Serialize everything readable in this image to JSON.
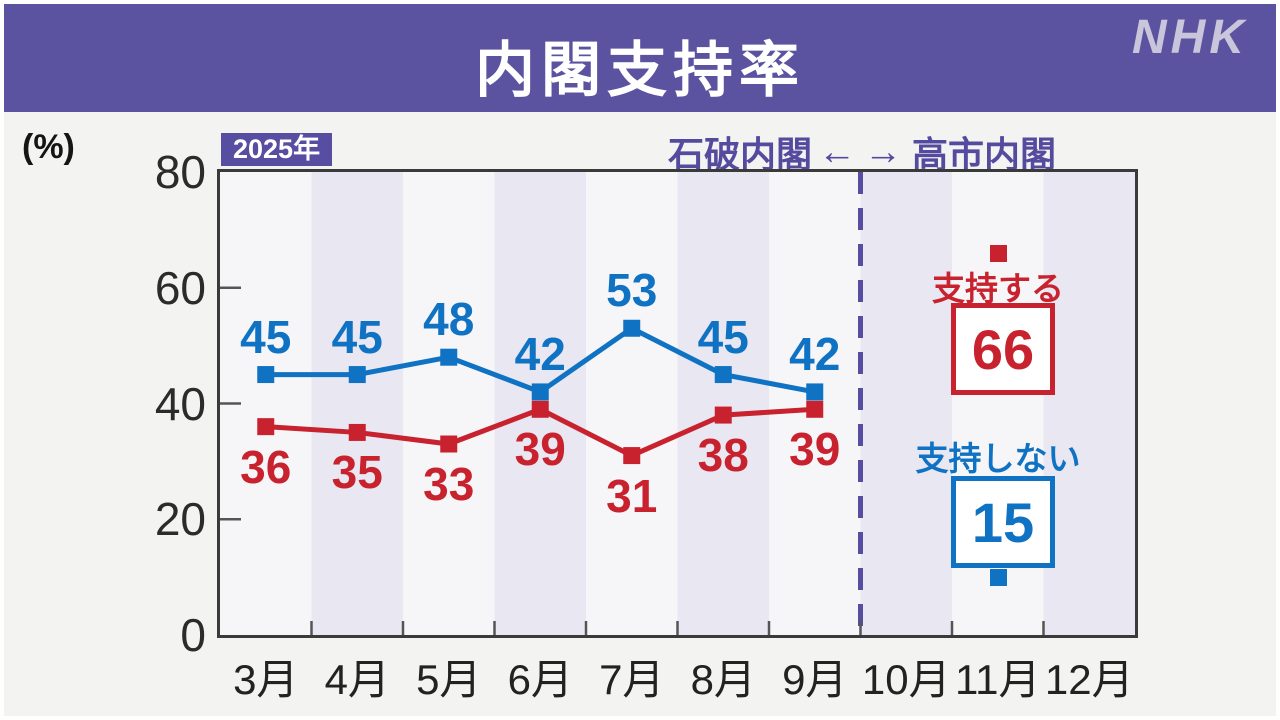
{
  "header": {
    "title": "内閣支持率",
    "logo": "NHK"
  },
  "axis_unit": "(%)",
  "year_badge": "2025年",
  "era_annotation": {
    "left_label": "石破内閣",
    "left_arrow": "←",
    "right_arrow": "→",
    "right_label": "高市内閣"
  },
  "chart_data": {
    "type": "line",
    "title": "内閣支持率",
    "ylabel": "(%)",
    "ylim": [
      0,
      80
    ],
    "y_ticks": [
      0,
      20,
      40,
      60,
      80
    ],
    "categories": [
      "3月",
      "4月",
      "5月",
      "6月",
      "7月",
      "8月",
      "9月",
      "10月",
      "11月",
      "12月"
    ],
    "series": [
      {
        "name": "支持しない",
        "color": "#0F72C2",
        "label_position": "above",
        "values": [
          45,
          45,
          48,
          42,
          53,
          45,
          42,
          null,
          15,
          null
        ]
      },
      {
        "name": "支持する",
        "color": "#C9222F",
        "label_position": "below",
        "values": [
          36,
          35,
          33,
          39,
          31,
          38,
          39,
          null,
          66,
          null
        ]
      }
    ],
    "transition_boundary_between": [
      "9月",
      "10月"
    ],
    "grid": "alternating-month-bands",
    "legend_position": "in-plot-right"
  },
  "callouts": {
    "approve": {
      "label": "支持する",
      "value": 66,
      "color": "#C9222F"
    },
    "disapprove": {
      "label": "支持しない",
      "value": 15,
      "color": "#0F72C2"
    }
  }
}
